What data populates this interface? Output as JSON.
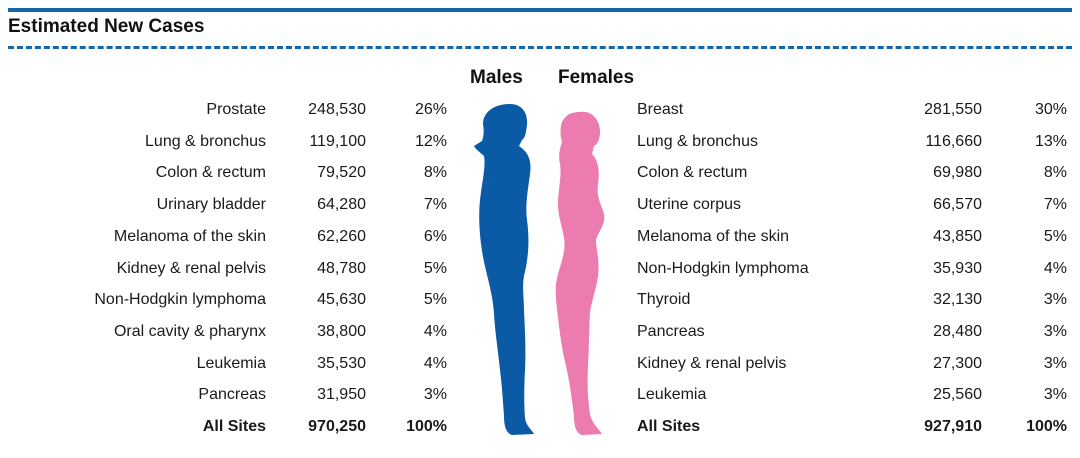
{
  "title": "Estimated New Cases",
  "males_label": "Males",
  "females_label": "Females",
  "colors": {
    "accent": "#1466a8",
    "male": "#0b5aa5",
    "female": "#ec7bb0"
  },
  "icons": {
    "male": "male-silhouette-icon",
    "female": "female-silhouette-icon"
  },
  "male_rows": [
    {
      "site": "Prostate",
      "cases": "248,530",
      "pct": "26%"
    },
    {
      "site": "Lung & bronchus",
      "cases": "119,100",
      "pct": "12%"
    },
    {
      "site": "Colon & rectum",
      "cases": "79,520",
      "pct": "8%"
    },
    {
      "site": "Urinary bladder",
      "cases": "64,280",
      "pct": "7%"
    },
    {
      "site": "Melanoma of the skin",
      "cases": "62,260",
      "pct": "6%"
    },
    {
      "site": "Kidney & renal pelvis",
      "cases": "48,780",
      "pct": "5%"
    },
    {
      "site": "Non-Hodgkin lymphoma",
      "cases": "45,630",
      "pct": "5%"
    },
    {
      "site": "Oral cavity & pharynx",
      "cases": "38,800",
      "pct": "4%"
    },
    {
      "site": "Leukemia",
      "cases": "35,530",
      "pct": "4%"
    },
    {
      "site": "Pancreas",
      "cases": "31,950",
      "pct": "3%"
    }
  ],
  "male_total": {
    "site": "All Sites",
    "cases": "970,250",
    "pct": "100%"
  },
  "female_rows": [
    {
      "site": "Breast",
      "cases": "281,550",
      "pct": "30%"
    },
    {
      "site": "Lung & bronchus",
      "cases": "116,660",
      "pct": "13%"
    },
    {
      "site": "Colon & rectum",
      "cases": "69,980",
      "pct": "8%"
    },
    {
      "site": "Uterine corpus",
      "cases": "66,570",
      "pct": "7%"
    },
    {
      "site": "Melanoma of the skin",
      "cases": "43,850",
      "pct": "5%"
    },
    {
      "site": "Non-Hodgkin lymphoma",
      "cases": "35,930",
      "pct": "4%"
    },
    {
      "site": "Thyroid",
      "cases": "32,130",
      "pct": "3%"
    },
    {
      "site": "Pancreas",
      "cases": "28,480",
      "pct": "3%"
    },
    {
      "site": "Kidney & renal pelvis",
      "cases": "27,300",
      "pct": "3%"
    },
    {
      "site": "Leukemia",
      "cases": "25,560",
      "pct": "3%"
    }
  ],
  "female_total": {
    "site": "All Sites",
    "cases": "927,910",
    "pct": "100%"
  }
}
